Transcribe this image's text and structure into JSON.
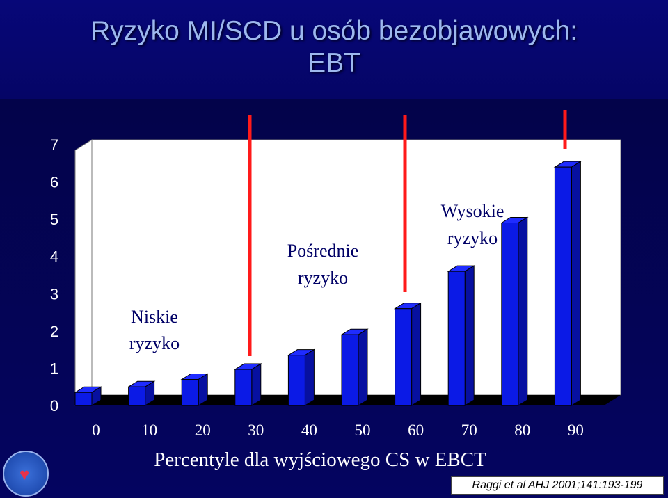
{
  "slide": {
    "title_line1": "Ryzyko MI/SCD u osób bezobjawowych:",
    "title_line2": "EBT",
    "citation": "Raggi et al AHJ 2001;141:193-199",
    "logo_icon": "heart-logo-icon"
  },
  "colors": {
    "bar_front": "#0b1ae6",
    "bar_top": "#1f2cff",
    "bar_side": "#0710a0",
    "plot_back": "#ffffff",
    "floor": "#000000",
    "divider": "#ff1a1a",
    "zone_text": "#000066",
    "title_text": "#9db8ee"
  },
  "chart_data": {
    "type": "bar",
    "three_d": true,
    "categories": [
      "0",
      "10",
      "20",
      "30",
      "40",
      "50",
      "60",
      "70",
      "80",
      "90"
    ],
    "values": [
      0.35,
      0.5,
      0.7,
      0.97,
      1.35,
      1.9,
      2.6,
      3.6,
      4.9,
      6.4
    ],
    "xlabel": "Percentyle dla wyjściowego CS w EBCT",
    "ylabel": "",
    "ylim": [
      0,
      7
    ],
    "yticks": [
      0,
      1,
      2,
      3,
      4,
      5,
      6,
      7
    ],
    "grid": false,
    "risk_dividers_after_category": [
      "30",
      "60",
      "80"
    ],
    "risk_zones": [
      {
        "line1": "Niskie",
        "line2": "ryzyko"
      },
      {
        "line1": "Pośrednie",
        "line2": "ryzyko"
      },
      {
        "line1": "Wysokie",
        "line2": "ryzyko"
      }
    ]
  }
}
